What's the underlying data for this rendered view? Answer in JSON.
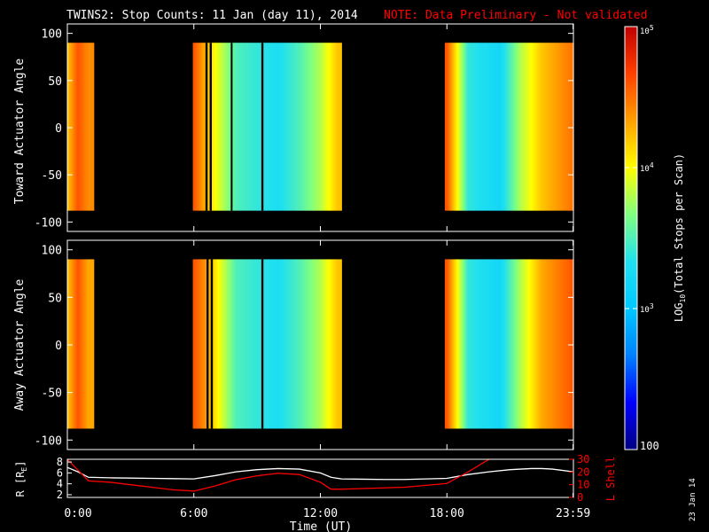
{
  "title": {
    "main": "TWINS2: Stop Counts: 11 Jan (day  11), 2014",
    "note": "NOTE: Data Preliminary - Not validated"
  },
  "colors": {
    "background": "#000000",
    "axes": "#ffffff",
    "note": "#ff0000",
    "r_line": "#ffffff",
    "l_shell_line": "#ff0000"
  },
  "colorbar": {
    "label": "LOG10(Total Stops per Scan)",
    "label_prefix": "LOG",
    "label_sub": "10",
    "label_suffix": "(Total Stops per Scan)",
    "scale": "log",
    "range": [
      100,
      100000
    ],
    "ticks": [
      {
        "value": 100,
        "label": "100"
      },
      {
        "value": 1000,
        "label": "10",
        "exp": "3"
      },
      {
        "value": 10000,
        "label": "10",
        "exp": "4"
      },
      {
        "value": 100000,
        "label": "10",
        "exp": "5"
      }
    ],
    "colormap": [
      "#000080",
      "#0000ff",
      "#0080ff",
      "#00c8ff",
      "#20e0f0",
      "#80ff80",
      "#ffff00",
      "#ffa000",
      "#ff4000",
      "#c00000"
    ]
  },
  "footer_date": "23 Jan 14",
  "chart_data": [
    {
      "type": "heatmap",
      "ylabel": "Toward Actuator Angle",
      "xlabel": "",
      "xlim": [
        0,
        24
      ],
      "ylim": [
        -110,
        110
      ],
      "yticks": [
        100,
        50,
        0,
        -50,
        -100
      ],
      "angle_range": [
        -88,
        90
      ],
      "no_data_color": "#000000",
      "data_intervals": [
        [
          0.0,
          1.25
        ],
        [
          5.95,
          13.0
        ],
        [
          17.9,
          24.0
        ]
      ],
      "gaps": [
        [
          6.55,
          6.65
        ],
        [
          6.75,
          6.85
        ],
        [
          7.75,
          7.8
        ],
        [
          9.2,
          9.3
        ]
      ],
      "approx_log_counts_vs_time": [
        {
          "t": 0.0,
          "log": 4.2
        },
        {
          "t": 0.5,
          "log": 4.6
        },
        {
          "t": 1.0,
          "log": 4.4
        },
        {
          "t": 6.0,
          "log": 4.6
        },
        {
          "t": 6.5,
          "log": 4.3
        },
        {
          "t": 7.0,
          "log": 4.0
        },
        {
          "t": 8.0,
          "log": 3.5
        },
        {
          "t": 10.0,
          "log": 3.3
        },
        {
          "t": 11.0,
          "log": 3.5
        },
        {
          "t": 12.0,
          "log": 3.8
        },
        {
          "t": 12.8,
          "log": 4.2
        },
        {
          "t": 18.0,
          "log": 4.6
        },
        {
          "t": 18.5,
          "log": 4.0
        },
        {
          "t": 19.0,
          "log": 3.4
        },
        {
          "t": 20.5,
          "log": 3.2
        },
        {
          "t": 21.5,
          "log": 3.8
        },
        {
          "t": 22.5,
          "log": 4.2
        },
        {
          "t": 24.0,
          "log": 4.5
        }
      ]
    },
    {
      "type": "heatmap",
      "ylabel": "Away Actuator Angle",
      "xlabel": "",
      "xlim": [
        0,
        24
      ],
      "ylim": [
        -110,
        110
      ],
      "yticks": [
        100,
        50,
        0,
        -50,
        -100
      ],
      "angle_range": [
        -88,
        90
      ],
      "no_data_color": "#000000",
      "data_intervals": [
        [
          0.0,
          1.25
        ],
        [
          5.95,
          13.0
        ],
        [
          17.9,
          24.0
        ]
      ],
      "gaps": [
        [
          6.6,
          6.7
        ],
        [
          6.8,
          6.9
        ],
        [
          9.2,
          9.3
        ]
      ],
      "approx_log_counts_vs_time": [
        {
          "t": 0.0,
          "log": 4.2
        },
        {
          "t": 0.5,
          "log": 4.6
        },
        {
          "t": 1.0,
          "log": 4.3
        },
        {
          "t": 6.0,
          "log": 4.6
        },
        {
          "t": 6.5,
          "log": 4.4
        },
        {
          "t": 7.0,
          "log": 4.1
        },
        {
          "t": 8.0,
          "log": 3.5
        },
        {
          "t": 10.0,
          "log": 3.3
        },
        {
          "t": 11.0,
          "log": 3.5
        },
        {
          "t": 12.0,
          "log": 3.8
        },
        {
          "t": 12.8,
          "log": 4.2
        },
        {
          "t": 18.0,
          "log": 4.6
        },
        {
          "t": 18.5,
          "log": 4.0
        },
        {
          "t": 19.0,
          "log": 3.4
        },
        {
          "t": 20.5,
          "log": 3.2
        },
        {
          "t": 21.5,
          "log": 3.8
        },
        {
          "t": 22.5,
          "log": 4.3
        },
        {
          "t": 24.0,
          "log": 4.6
        }
      ]
    },
    {
      "type": "line",
      "xlabel": "Time (UT)",
      "xlim": [
        0,
        24
      ],
      "xticks": [
        {
          "value": 0,
          "label": "0:00"
        },
        {
          "value": 6,
          "label": "6:00"
        },
        {
          "value": 12,
          "label": "12:00"
        },
        {
          "value": 18,
          "label": "18:00"
        },
        {
          "value": 23.983,
          "label": "23:59"
        }
      ],
      "left_axis": {
        "label": "R [RE]",
        "label_main": "R [R",
        "label_sub": "E",
        "label_end": "]",
        "ylim": [
          1.5,
          8.5
        ],
        "ticks": [
          8,
          6,
          4,
          2
        ]
      },
      "right_axis": {
        "label": "L Shell",
        "ylim": [
          0,
          30
        ],
        "ticks": [
          30,
          20,
          10,
          0
        ]
      },
      "series": [
        {
          "name": "R [RE]",
          "axis": "left",
          "x": [
            0.0,
            0.5,
            1.0,
            2.0,
            3.0,
            4.0,
            5.0,
            6.0,
            7.0,
            8.0,
            9.0,
            10.0,
            11.0,
            12.0,
            12.5,
            13.0,
            14.0,
            15.0,
            16.0,
            17.0,
            18.0,
            19.0,
            20.0,
            21.0,
            22.0,
            22.5,
            23.0,
            24.0
          ],
          "values": [
            7.0,
            6.2,
            5.2,
            5.1,
            5.05,
            5.0,
            4.95,
            4.9,
            5.5,
            6.2,
            6.6,
            6.8,
            6.7,
            6.0,
            5.2,
            4.9,
            4.85,
            4.8,
            4.8,
            4.9,
            5.0,
            5.7,
            6.2,
            6.6,
            6.8,
            6.8,
            6.7,
            6.2
          ]
        },
        {
          "name": "L Shell",
          "axis": "right",
          "x": [
            0.0,
            1.0,
            2.0,
            3.0,
            4.0,
            5.0,
            6.0,
            7.0,
            8.0,
            9.0,
            10.0,
            11.0,
            12.0,
            12.5,
            13.0,
            14.0,
            16.0,
            18.0,
            19.0,
            20.0,
            21.0
          ],
          "values": [
            30.0,
            13.0,
            12.0,
            10.0,
            8.0,
            6.0,
            5.0,
            9.0,
            14.0,
            17.0,
            19.0,
            18.0,
            12.0,
            6.5,
            6.5,
            7.0,
            8.0,
            11.0,
            20.0,
            30.0,
            31.0
          ]
        }
      ]
    }
  ]
}
